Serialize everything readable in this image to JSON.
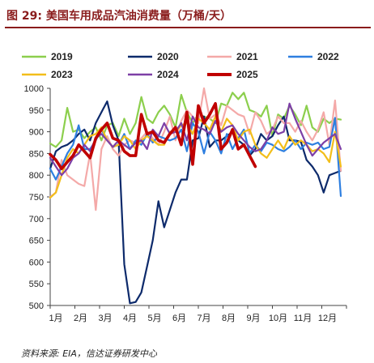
{
  "header": {
    "title": "图 29:  美国车用成品汽油消费量（万桶/天）"
  },
  "footer": {
    "source": "资料来源: EIA，信达证券研发中心"
  },
  "chart_data": {
    "type": "line",
    "ylim": [
      500,
      1000
    ],
    "yticks": [
      500,
      550,
      600,
      650,
      700,
      750,
      800,
      850,
      900,
      950,
      1000
    ],
    "xlim": [
      1,
      53
    ],
    "xtick_labels": [
      "1月",
      "2月",
      "3月",
      "4月",
      "5月",
      "6月",
      "7月",
      "8月",
      "9月",
      "10月",
      "11月",
      "12月"
    ],
    "grid": false,
    "legend": "top",
    "series": [
      {
        "name": "2019",
        "color": "#8ccf4d",
        "width": 2.2,
        "values": [
          873,
          865,
          880,
          955,
          900,
          905,
          885,
          900,
          910,
          880,
          915,
          920,
          890,
          930,
          895,
          920,
          980,
          930,
          920,
          945,
          960,
          940,
          910,
          985,
          945,
          920,
          940,
          935,
          930,
          920,
          965,
          960,
          990,
          975,
          990,
          950,
          945,
          935,
          960,
          890,
          940,
          930,
          960,
          940,
          915,
          960,
          910,
          900,
          930,
          920,
          930,
          928
        ]
      },
      {
        "name": "2020",
        "color": "#0d2a6b",
        "width": 2.2,
        "values": [
          815,
          855,
          865,
          870,
          880,
          895,
          905,
          880,
          920,
          945,
          970,
          915,
          880,
          595,
          505,
          508,
          530,
          590,
          650,
          740,
          680,
          720,
          760,
          790,
          790,
          880,
          885,
          935,
          865,
          880,
          880,
          890,
          900,
          880,
          870,
          845,
          860,
          895,
          880,
          890,
          915,
          935,
          880,
          880,
          877,
          835,
          820,
          800,
          760,
          800,
          805,
          810
        ]
      },
      {
        "name": "2021",
        "color": "#f4a9a8",
        "width": 2.2,
        "values": [
          750,
          760,
          835,
          800,
          790,
          780,
          775,
          850,
          720,
          860,
          890,
          860,
          845,
          870,
          880,
          875,
          885,
          900,
          885,
          870,
          900,
          935,
          880,
          925,
          950,
          935,
          920,
          1000,
          930,
          940,
          915,
          960,
          950,
          940,
          935,
          895,
          945,
          925,
          895,
          905,
          935,
          920,
          920,
          900,
          925,
          900,
          880,
          905,
          945,
          870,
          972,
          810
        ]
      },
      {
        "name": "2022",
        "color": "#2e7fe0",
        "width": 2.2,
        "values": [
          815,
          790,
          820,
          850,
          870,
          915,
          860,
          860,
          880,
          905,
          880,
          865,
          870,
          895,
          860,
          880,
          870,
          895,
          875,
          890,
          885,
          880,
          885,
          905,
          855,
          920,
          900,
          850,
          900,
          880,
          850,
          895,
          860,
          885,
          905,
          850,
          870,
          855,
          875,
          870,
          860,
          855,
          865,
          880,
          860,
          875,
          870,
          875,
          860,
          865,
          932,
          752
        ]
      },
      {
        "name": "2023",
        "color": "#f2be1a",
        "width": 2.2,
        "values": [
          748,
          760,
          800,
          840,
          860,
          850,
          870,
          890,
          895,
          910,
          880,
          865,
          870,
          890,
          880,
          860,
          880,
          890,
          880,
          870,
          870,
          900,
          900,
          915,
          920,
          895,
          930,
          920,
          905,
          935,
          900,
          930,
          915,
          880,
          900,
          905,
          870,
          850,
          840,
          860,
          880,
          860,
          890,
          870,
          880,
          870,
          855,
          860,
          850,
          830,
          900,
          820
        ]
      },
      {
        "name": "2024",
        "color": "#7d3fa6",
        "width": 2.2,
        "values": [
          840,
          820,
          800,
          815,
          840,
          850,
          870,
          855,
          885,
          895,
          880,
          865,
          880,
          870,
          860,
          875,
          880,
          860,
          905,
          890,
          920,
          895,
          900,
          920,
          880,
          935,
          910,
          905,
          895,
          925,
          900,
          910,
          915,
          895,
          880,
          865,
          855,
          860,
          880,
          910,
          895,
          900,
          965,
          930,
          900,
          870,
          845,
          860,
          875,
          885,
          895,
          860
        ]
      },
      {
        "name": "2025",
        "color": "#c00000",
        "width": 3.6,
        "values": [
          848,
          835,
          815,
          830,
          845,
          870,
          855,
          840,
          885,
          905,
          920,
          885,
          880,
          855,
          845,
          845,
          940,
          895,
          900,
          880,
          875,
          895,
          910,
          870,
          945,
          825,
          960,
          920,
          940,
          965,
          860,
          875,
          905,
          860,
          870,
          845,
          820
        ]
      }
    ]
  }
}
